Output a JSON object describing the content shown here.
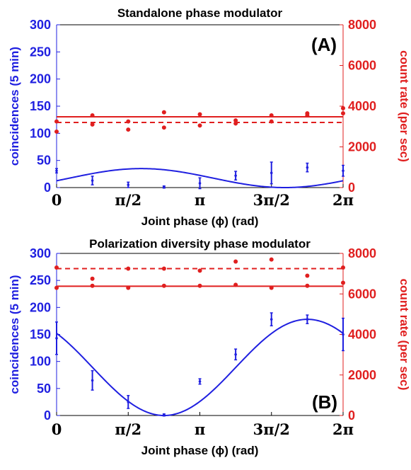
{
  "colors": {
    "left": "#1f1fe0",
    "right": "#e01f1f",
    "axis": "#000000"
  },
  "chart_data": [
    {
      "type": "scatter",
      "panel_tag": "(A)",
      "title": "Standalone phase modulator",
      "xlabel": "Joint phase (ϕ) (rad)",
      "ylabel_left": "coincidences (5 min)",
      "ylabel_right": "count rate (per sec)",
      "xlim": [
        0,
        6.2832
      ],
      "ylim_left": [
        0,
        300
      ],
      "ylim_right": [
        0,
        8000
      ],
      "yticks_left": [
        "0",
        "50",
        "100",
        "150",
        "200",
        "250",
        "300"
      ],
      "yticks_right": [
        "0",
        "2000",
        "4000",
        "6000",
        "8000"
      ],
      "xticks": [
        {
          "x": 0,
          "label": "0"
        },
        {
          "x": 1.5708,
          "label": "π/2"
        },
        {
          "x": 3.1416,
          "label": "π"
        },
        {
          "x": 4.7124,
          "label": "3π/2"
        },
        {
          "x": 6.2832,
          "label": "2π"
        }
      ],
      "coincidences": {
        "x": [
          0,
          0.785,
          1.571,
          2.356,
          3.142,
          3.927,
          4.712,
          5.498,
          6.283
        ],
        "y": [
          31,
          13,
          5,
          1,
          8,
          22,
          27,
          37,
          31
        ],
        "err": [
          4,
          8,
          5,
          2,
          10,
          8,
          20,
          8,
          10
        ],
        "fit_form": "A*(1 - cos(x - phi0))/2",
        "fit_amplitude": 35,
        "fit_phi0": 5.0
      },
      "count_rate": {
        "series": [
          {
            "name": "solid",
            "x": [
              0,
              0.785,
              1.571,
              2.356,
              3.142,
              3.927,
              4.712,
              5.498,
              6.283
            ],
            "y": [
              3250,
              3550,
              3250,
              3700,
              3600,
              3300,
              3550,
              3650,
              3650
            ],
            "level": 3480
          },
          {
            "name": "dashed",
            "x": [
              0,
              0.785,
              1.571,
              2.356,
              3.142,
              3.927,
              4.712,
              5.498,
              6.283
            ],
            "y": [
              2750,
              3100,
              2850,
              2950,
              3050,
              3150,
              3250,
              3550,
              3900
            ],
            "level": 3200
          }
        ]
      }
    },
    {
      "type": "scatter",
      "panel_tag": "(B)",
      "title": "Polarization diversity phase modulator",
      "xlabel": "Joint phase (ϕ) (rad)",
      "ylabel_left": "coincidences (5 min)",
      "ylabel_right": "count rate (per sec)",
      "xlim": [
        0,
        6.2832
      ],
      "ylim_left": [
        0,
        300
      ],
      "ylim_right": [
        0,
        8000
      ],
      "yticks_left": [
        "0",
        "50",
        "100",
        "150",
        "200",
        "250",
        "300"
      ],
      "yticks_right": [
        "0",
        "2000",
        "4000",
        "6000",
        "8000"
      ],
      "xticks": [
        {
          "x": 0,
          "label": "0"
        },
        {
          "x": 1.5708,
          "label": "π/2"
        },
        {
          "x": 3.1416,
          "label": "π"
        },
        {
          "x": 4.7124,
          "label": "3π/2"
        },
        {
          "x": 6.2832,
          "label": "2π"
        }
      ],
      "coincidences": {
        "x": [
          0,
          0.785,
          1.571,
          2.356,
          3.142,
          3.927,
          4.712,
          5.498,
          6.283
        ],
        "y": [
          143,
          65,
          25,
          1,
          63,
          113,
          178,
          178,
          150
        ],
        "err": [
          30,
          18,
          12,
          2,
          5,
          10,
          12,
          8,
          30
        ],
        "fit_form": "A*(1 + cos(x - phi0))/2",
        "fit_amplitude": 178,
        "fit_phi0": 5.5
      },
      "count_rate": {
        "series": [
          {
            "name": "dashed",
            "x": [
              0,
              0.785,
              1.571,
              2.356,
              3.142,
              3.927,
              4.712,
              5.498,
              6.283
            ],
            "y": [
              7300,
              6750,
              7250,
              7250,
              7150,
              7600,
              7700,
              6900,
              7300
            ],
            "level": 7250
          },
          {
            "name": "solid",
            "x": [
              0,
              0.785,
              1.571,
              2.356,
              3.142,
              3.927,
              4.712,
              5.498,
              6.283
            ],
            "y": [
              6300,
              6400,
              6300,
              6400,
              6400,
              6450,
              6300,
              6400,
              6550
            ],
            "level": 6380
          }
        ]
      }
    }
  ]
}
